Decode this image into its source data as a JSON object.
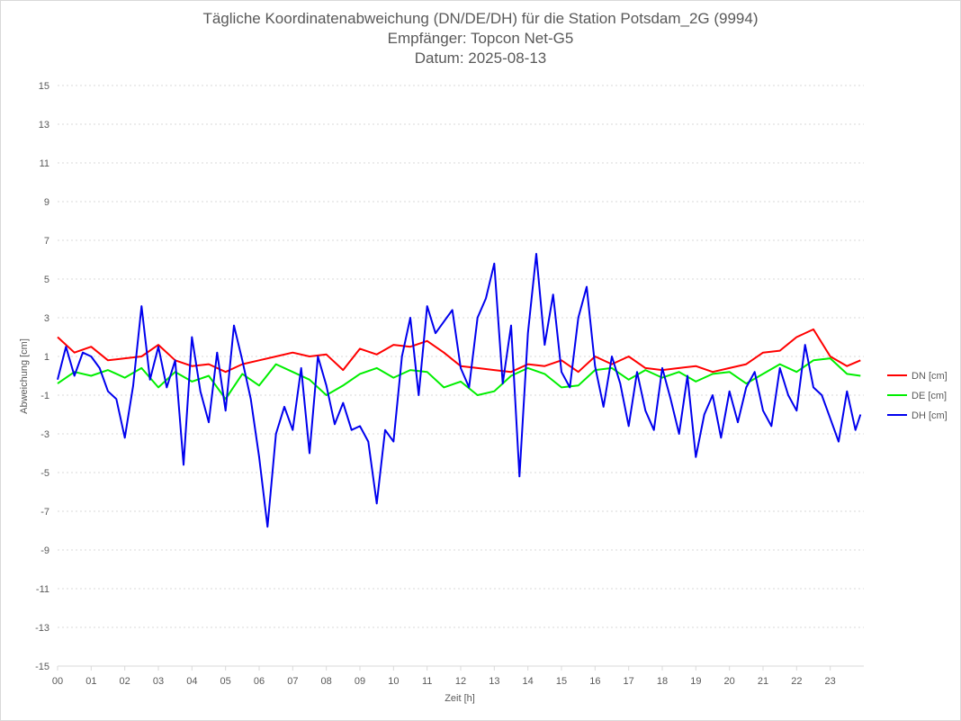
{
  "chart_data": {
    "type": "line",
    "title": "Tägliche Koordinatenabweichung (DN/DE/DH) für die Station Potsdam_2G (9994)",
    "subtitle1": "Empfänger: Topcon Net-G5",
    "subtitle2": "Datum: 2025-08-13",
    "xlabel": "Zeit [h]",
    "ylabel": "Abweichung [cm]",
    "ylim": [
      -15,
      15
    ],
    "yticks": [
      "15",
      "13",
      "11",
      "9",
      "7",
      "5",
      "3",
      "1",
      "-1",
      "-3",
      "-5",
      "-7",
      "-9",
      "-11",
      "-13",
      "-15"
    ],
    "xticks": [
      "00",
      "01",
      "02",
      "03",
      "04",
      "05",
      "06",
      "07",
      "08",
      "09",
      "10",
      "11",
      "12",
      "13",
      "14",
      "15",
      "16",
      "17",
      "18",
      "19",
      "20",
      "21",
      "22",
      "23"
    ],
    "xlim": [
      0,
      24
    ],
    "grid": true,
    "legend_position": "right",
    "series": [
      {
        "name": "DN [cm]",
        "color": "#ff0000",
        "x": [
          0,
          0.5,
          1,
          1.5,
          2,
          2.5,
          3,
          3.5,
          4,
          4.5,
          5,
          5.5,
          6,
          6.5,
          7,
          7.5,
          8,
          8.5,
          9,
          9.5,
          10,
          10.5,
          11,
          11.5,
          12,
          12.5,
          13,
          13.5,
          14,
          14.5,
          15,
          15.5,
          16,
          16.5,
          17,
          17.5,
          18,
          18.5,
          19,
          19.5,
          20,
          20.5,
          21,
          21.5,
          22,
          22.5,
          23,
          23.5,
          23.9
        ],
        "values": [
          2.0,
          1.2,
          1.5,
          0.8,
          0.9,
          1.0,
          1.6,
          0.8,
          0.5,
          0.6,
          0.2,
          0.6,
          0.8,
          1.0,
          1.2,
          1.0,
          1.1,
          0.3,
          1.4,
          1.1,
          1.6,
          1.5,
          1.8,
          1.2,
          0.5,
          0.4,
          0.3,
          0.2,
          0.6,
          0.5,
          0.8,
          0.2,
          1.0,
          0.6,
          1.0,
          0.4,
          0.3,
          0.4,
          0.5,
          0.2,
          0.4,
          0.6,
          1.2,
          1.3,
          2.0,
          2.4,
          1.0,
          0.5,
          0.8
        ]
      },
      {
        "name": "DE [cm]",
        "color": "#00ee00",
        "x": [
          0,
          0.5,
          1,
          1.5,
          2,
          2.5,
          3,
          3.5,
          4,
          4.5,
          5,
          5.5,
          6,
          6.5,
          7,
          7.5,
          8,
          8.5,
          9,
          9.5,
          10,
          10.5,
          11,
          11.5,
          12,
          12.5,
          13,
          13.5,
          14,
          14.5,
          15,
          15.5,
          16,
          16.5,
          17,
          17.5,
          18,
          18.5,
          19,
          19.5,
          20,
          20.5,
          21,
          21.5,
          22,
          22.5,
          23,
          23.5,
          23.9
        ],
        "values": [
          -0.4,
          0.2,
          0.0,
          0.3,
          -0.1,
          0.4,
          -0.6,
          0.2,
          -0.3,
          0.0,
          -1.2,
          0.1,
          -0.5,
          0.6,
          0.2,
          -0.2,
          -1.0,
          -0.5,
          0.1,
          0.4,
          -0.1,
          0.3,
          0.2,
          -0.6,
          -0.3,
          -1.0,
          -0.8,
          0.0,
          0.4,
          0.1,
          -0.6,
          -0.5,
          0.3,
          0.4,
          -0.2,
          0.3,
          -0.1,
          0.2,
          -0.3,
          0.1,
          0.2,
          -0.4,
          0.1,
          0.6,
          0.2,
          0.8,
          0.9,
          0.1,
          0.0
        ]
      },
      {
        "name": "DH [cm]",
        "color": "#0000ee",
        "x": [
          0,
          0.25,
          0.5,
          0.75,
          1,
          1.25,
          1.5,
          1.75,
          2,
          2.25,
          2.5,
          2.75,
          3,
          3.25,
          3.5,
          3.75,
          4,
          4.25,
          4.5,
          4.75,
          5,
          5.25,
          5.5,
          5.75,
          6,
          6.25,
          6.5,
          6.75,
          7,
          7.25,
          7.5,
          7.75,
          8,
          8.25,
          8.5,
          8.75,
          9,
          9.25,
          9.5,
          9.75,
          10,
          10.25,
          10.5,
          10.75,
          11,
          11.25,
          11.5,
          11.75,
          12,
          12.25,
          12.5,
          12.75,
          13,
          13.25,
          13.5,
          13.75,
          14,
          14.25,
          14.5,
          14.75,
          15,
          15.25,
          15.5,
          15.75,
          16,
          16.25,
          16.5,
          16.75,
          17,
          17.25,
          17.5,
          17.75,
          18,
          18.25,
          18.5,
          18.75,
          19,
          19.25,
          19.5,
          19.75,
          20,
          20.25,
          20.5,
          20.75,
          21,
          21.25,
          21.5,
          21.75,
          22,
          22.25,
          22.5,
          22.75,
          23,
          23.25,
          23.5,
          23.75,
          23.9
        ],
        "values": [
          -0.2,
          1.5,
          0.0,
          1.2,
          1.0,
          0.4,
          -0.8,
          -1.2,
          -3.2,
          -0.5,
          3.6,
          -0.2,
          1.5,
          -0.6,
          0.8,
          -4.6,
          2.0,
          -0.8,
          -2.4,
          1.2,
          -1.8,
          2.6,
          0.8,
          -1.2,
          -4.2,
          -7.8,
          -3.0,
          -1.6,
          -2.8,
          0.4,
          -4.0,
          1.0,
          -0.5,
          -2.5,
          -1.4,
          -2.8,
          -2.6,
          -3.4,
          -6.6,
          -2.8,
          -3.4,
          1.0,
          3.0,
          -1.0,
          3.6,
          2.2,
          2.8,
          3.4,
          0.4,
          -0.6,
          3.0,
          4.0,
          5.8,
          -0.4,
          2.6,
          -5.2,
          2.2,
          6.3,
          1.6,
          4.2,
          0.2,
          -0.6,
          3.0,
          4.6,
          0.5,
          -1.6,
          1.0,
          -0.4,
          -2.6,
          0.2,
          -1.8,
          -2.8,
          0.4,
          -1.2,
          -3.0,
          0.0,
          -4.2,
          -2.0,
          -1.0,
          -3.2,
          -0.8,
          -2.4,
          -0.6,
          0.2,
          -1.8,
          -2.6,
          0.4,
          -1.0,
          -1.8,
          1.6,
          -0.6,
          -1.0,
          -2.2,
          -3.4,
          -0.8,
          -2.8,
          -2.0
        ]
      }
    ]
  }
}
